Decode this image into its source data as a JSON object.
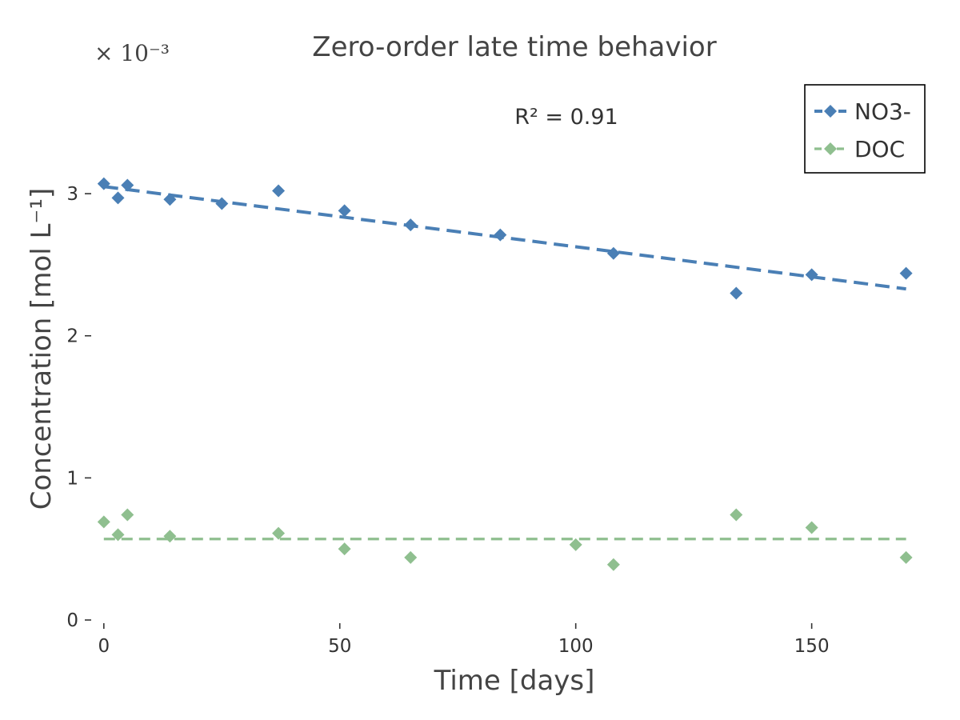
{
  "chart_data": {
    "type": "scatter",
    "title": "Zero-order late time behavior",
    "xlabel": "Time [days]",
    "ylabel": "Concentration [mol L⁻¹]",
    "y_scale_note": "× 10⁻³",
    "annotation": "R² = 0.91",
    "xlim": [
      -2,
      176
    ],
    "ylim": [
      0,
      3.8
    ],
    "x_ticks": [
      0,
      50,
      100,
      150
    ],
    "y_ticks": [
      0,
      1,
      2,
      3
    ],
    "grid": false,
    "legend_position": "top-right",
    "series": [
      {
        "name": "NO3-",
        "color": "#4a7fb5",
        "marker": "diamond",
        "x": [
          0,
          3,
          5,
          14,
          25,
          37,
          51,
          65,
          84,
          108,
          134,
          150,
          170
        ],
        "y": [
          3.07,
          2.97,
          3.06,
          2.96,
          2.93,
          3.02,
          2.88,
          2.78,
          2.71,
          2.58,
          2.3,
          2.43,
          2.44
        ],
        "fit": {
          "style": "dashed",
          "x": [
            0,
            170
          ],
          "y": [
            3.05,
            2.33
          ]
        }
      },
      {
        "name": "DOC",
        "color": "#8fbf8f",
        "marker": "diamond",
        "x": [
          0,
          3,
          5,
          14,
          37,
          51,
          65,
          100,
          108,
          134,
          150,
          170
        ],
        "y": [
          0.69,
          0.6,
          0.74,
          0.59,
          0.61,
          0.5,
          0.44,
          0.53,
          0.39,
          0.74,
          0.65,
          0.44
        ],
        "fit": {
          "style": "dashed",
          "x": [
            0,
            170
          ],
          "y": [
            0.57,
            0.57
          ]
        }
      }
    ]
  }
}
